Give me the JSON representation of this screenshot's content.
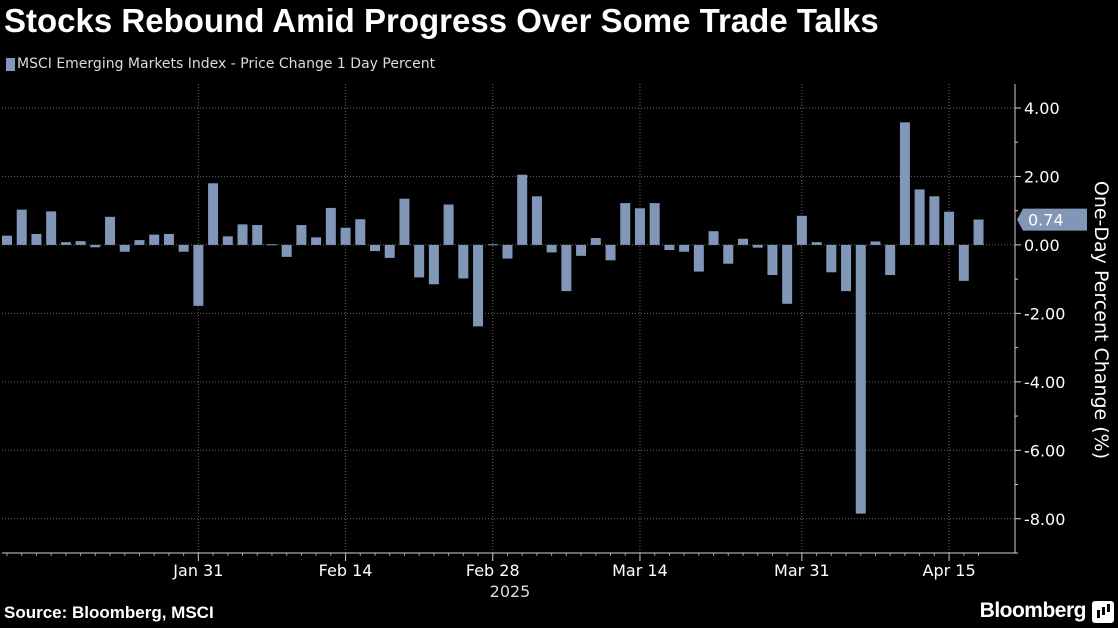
{
  "header": {
    "title": "Stocks Rebound Amid Progress Over Some Trade Talks"
  },
  "legend": {
    "label": "MSCI Emerging Markets Index - Price Change 1 Day Percent"
  },
  "footer": {
    "source": "Source: Bloomberg, MSCI",
    "brand": "Bloomberg"
  },
  "colors": {
    "background": "#000000",
    "bar": "#8097b8",
    "grid": "#6a6a6a",
    "text": "#ffffff"
  },
  "chart_data": {
    "type": "bar",
    "title": "Stocks Rebound Amid Progress Over Some Trade Talks",
    "ylabel": "One-Day Percent Change (%)",
    "xlabel": "",
    "year_label": "2025",
    "ylim": [
      -9.0,
      4.7
    ],
    "yticks": [
      4,
      2,
      0,
      -2,
      -4,
      -6,
      -8
    ],
    "ytick_labels": [
      "4.00",
      "2.00",
      "0.00",
      "-2.00",
      "-4.00",
      "-6.00",
      "-8.00"
    ],
    "x_tick_labels": [
      "Jan 31",
      "Feb 14",
      "Feb 28",
      "Mar 14",
      "Mar 31",
      "Apr 15"
    ],
    "x_tick_bar_index": [
      13,
      23,
      33,
      43,
      54,
      64
    ],
    "last_value_label": "0.74",
    "grid": true,
    "series": [
      {
        "name": "MSCI Emerging Markets Index - Price Change 1 Day Percent",
        "values": [
          0.27,
          1.03,
          0.32,
          0.98,
          0.08,
          0.11,
          -0.07,
          0.82,
          -0.2,
          0.14,
          0.3,
          0.32,
          -0.2,
          -1.78,
          1.8,
          0.25,
          0.6,
          0.58,
          0.02,
          -0.35,
          0.58,
          0.22,
          1.08,
          0.5,
          0.75,
          -0.18,
          -0.38,
          1.35,
          -0.95,
          -1.15,
          1.18,
          -0.98,
          -2.38,
          0.02,
          -0.4,
          2.05,
          1.42,
          -0.22,
          -1.35,
          -0.32,
          0.2,
          -0.45,
          1.22,
          1.07,
          1.22,
          -0.15,
          -0.2,
          -0.78,
          0.4,
          -0.55,
          0.18,
          -0.08,
          -0.88,
          -1.72,
          0.85,
          0.08,
          -0.8,
          -1.35,
          -7.85,
          0.1,
          -0.88,
          3.58,
          1.62,
          1.42,
          0.97,
          -1.05,
          0.74
        ]
      }
    ]
  }
}
